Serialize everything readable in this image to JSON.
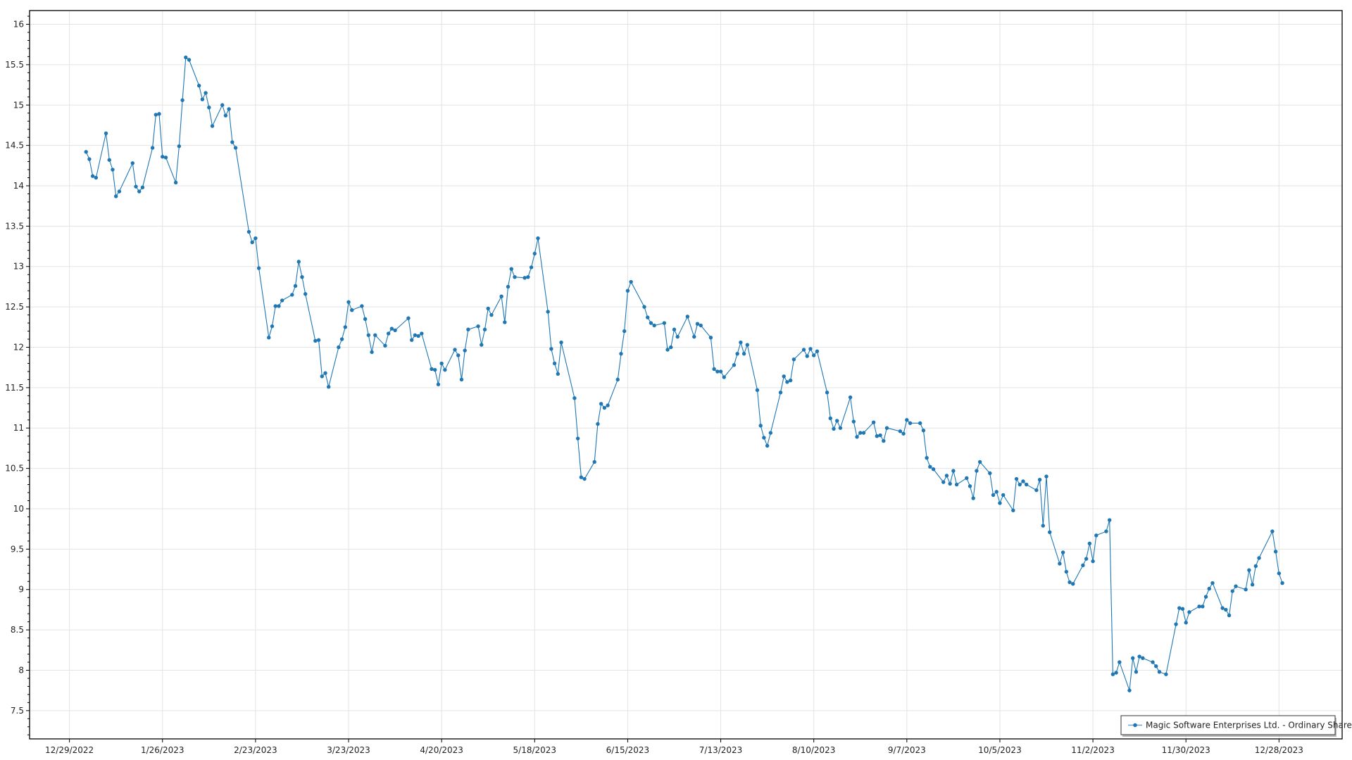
{
  "chart_data": {
    "type": "line",
    "title": "",
    "xlabel": "",
    "ylabel": "",
    "xlim": [
      "2022-12-17",
      "2024-01-16"
    ],
    "ylim": [
      7.15,
      16.17
    ],
    "grid": true,
    "legend_position": "bottom-right",
    "colors": {
      "series": "#1f77b4",
      "grid": "#e3e3e3",
      "axis": "#000000"
    },
    "y_ticks": [
      7.5,
      8,
      8.5,
      9,
      9.5,
      10,
      10.5,
      11,
      11.5,
      12,
      12.5,
      13,
      13.5,
      14,
      14.5,
      15,
      15.5,
      16
    ],
    "y_tick_labels": [
      "7.5",
      "8",
      "8.5",
      "9",
      "9.5",
      "10",
      "10.5",
      "11",
      "11.5",
      "12",
      "12.5",
      "13",
      "13.5",
      "14",
      "14.5",
      "15",
      "15.5",
      "16"
    ],
    "x_ticks": [
      "2022-12-29",
      "2023-01-26",
      "2023-02-23",
      "2023-03-23",
      "2023-04-20",
      "2023-05-18",
      "2023-06-15",
      "2023-07-13",
      "2023-08-10",
      "2023-09-07",
      "2023-10-05",
      "2023-11-02",
      "2023-11-30",
      "2023-12-28"
    ],
    "x_tick_labels": [
      "12/29/2022",
      "1/26/2023",
      "2/23/2023",
      "3/23/2023",
      "4/20/2023",
      "5/18/2023",
      "6/15/2023",
      "7/13/2023",
      "8/10/2023",
      "9/7/2023",
      "10/5/2023",
      "11/2/2023",
      "11/30/2023",
      "12/28/2023"
    ],
    "series": [
      {
        "name": "Magic Software Enterprises Ltd. - Ordinary Shares",
        "marker": "circle",
        "x": [
          "2023-01-03",
          "2023-01-04",
          "2023-01-05",
          "2023-01-06",
          "2023-01-09",
          "2023-01-10",
          "2023-01-11",
          "2023-01-12",
          "2023-01-13",
          "2023-01-17",
          "2023-01-18",
          "2023-01-19",
          "2023-01-20",
          "2023-01-23",
          "2023-01-24",
          "2023-01-25",
          "2023-01-26",
          "2023-01-27",
          "2023-01-30",
          "2023-01-31",
          "2023-02-01",
          "2023-02-02",
          "2023-02-03",
          "2023-02-06",
          "2023-02-07",
          "2023-02-08",
          "2023-02-09",
          "2023-02-10",
          "2023-02-13",
          "2023-02-14",
          "2023-02-15",
          "2023-02-16",
          "2023-02-17",
          "2023-02-21",
          "2023-02-22",
          "2023-02-23",
          "2023-02-24",
          "2023-02-27",
          "2023-02-28",
          "2023-03-01",
          "2023-03-02",
          "2023-03-03",
          "2023-03-06",
          "2023-03-07",
          "2023-03-08",
          "2023-03-09",
          "2023-03-10",
          "2023-03-13",
          "2023-03-14",
          "2023-03-15",
          "2023-03-16",
          "2023-03-17",
          "2023-03-20",
          "2023-03-21",
          "2023-03-22",
          "2023-03-23",
          "2023-03-24",
          "2023-03-27",
          "2023-03-28",
          "2023-03-29",
          "2023-03-30",
          "2023-03-31",
          "2023-04-03",
          "2023-04-04",
          "2023-04-05",
          "2023-04-06",
          "2023-04-10",
          "2023-04-11",
          "2023-04-12",
          "2023-04-13",
          "2023-04-14",
          "2023-04-17",
          "2023-04-18",
          "2023-04-19",
          "2023-04-20",
          "2023-04-21",
          "2023-04-24",
          "2023-04-25",
          "2023-04-26",
          "2023-04-27",
          "2023-04-28",
          "2023-05-01",
          "2023-05-02",
          "2023-05-03",
          "2023-05-04",
          "2023-05-05",
          "2023-05-08",
          "2023-05-09",
          "2023-05-10",
          "2023-05-11",
          "2023-05-12",
          "2023-05-15",
          "2023-05-16",
          "2023-05-17",
          "2023-05-18",
          "2023-05-19",
          "2023-05-22",
          "2023-05-23",
          "2023-05-24",
          "2023-05-25",
          "2023-05-26",
          "2023-05-30",
          "2023-05-31",
          "2023-06-01",
          "2023-06-02",
          "2023-06-05",
          "2023-06-06",
          "2023-06-07",
          "2023-06-08",
          "2023-06-09",
          "2023-06-12",
          "2023-06-13",
          "2023-06-14",
          "2023-06-15",
          "2023-06-16",
          "2023-06-20",
          "2023-06-21",
          "2023-06-22",
          "2023-06-23",
          "2023-06-26",
          "2023-06-27",
          "2023-06-28",
          "2023-06-29",
          "2023-06-30",
          "2023-07-03",
          "2023-07-05",
          "2023-07-06",
          "2023-07-07",
          "2023-07-10",
          "2023-07-11",
          "2023-07-12",
          "2023-07-13",
          "2023-07-14",
          "2023-07-17",
          "2023-07-18",
          "2023-07-19",
          "2023-07-20",
          "2023-07-21",
          "2023-07-24",
          "2023-07-25",
          "2023-07-26",
          "2023-07-27",
          "2023-07-28",
          "2023-07-31",
          "2023-08-01",
          "2023-08-02",
          "2023-08-03",
          "2023-08-04",
          "2023-08-07",
          "2023-08-08",
          "2023-08-09",
          "2023-08-10",
          "2023-08-11",
          "2023-08-14",
          "2023-08-15",
          "2023-08-16",
          "2023-08-17",
          "2023-08-18",
          "2023-08-21",
          "2023-08-22",
          "2023-08-23",
          "2023-08-24",
          "2023-08-25",
          "2023-08-28",
          "2023-08-29",
          "2023-08-30",
          "2023-08-31",
          "2023-09-01",
          "2023-09-05",
          "2023-09-06",
          "2023-09-07",
          "2023-09-08",
          "2023-09-11",
          "2023-09-12",
          "2023-09-13",
          "2023-09-14",
          "2023-09-15",
          "2023-09-18",
          "2023-09-19",
          "2023-09-20",
          "2023-09-21",
          "2023-09-22",
          "2023-09-25",
          "2023-09-26",
          "2023-09-27",
          "2023-09-28",
          "2023-09-29",
          "2023-10-02",
          "2023-10-03",
          "2023-10-04",
          "2023-10-05",
          "2023-10-06",
          "2023-10-09",
          "2023-10-10",
          "2023-10-11",
          "2023-10-12",
          "2023-10-13",
          "2023-10-16",
          "2023-10-17",
          "2023-10-18",
          "2023-10-19",
          "2023-10-20",
          "2023-10-23",
          "2023-10-24",
          "2023-10-25",
          "2023-10-26",
          "2023-10-27",
          "2023-10-30",
          "2023-10-31",
          "2023-11-01",
          "2023-11-02",
          "2023-11-03",
          "2023-11-06",
          "2023-11-07",
          "2023-11-08",
          "2023-11-09",
          "2023-11-10",
          "2023-11-13",
          "2023-11-14",
          "2023-11-15",
          "2023-11-16",
          "2023-11-17",
          "2023-11-20",
          "2023-11-21",
          "2023-11-22",
          "2023-11-24",
          "2023-11-27",
          "2023-11-28",
          "2023-11-29",
          "2023-11-30",
          "2023-12-01",
          "2023-12-04",
          "2023-12-05",
          "2023-12-06",
          "2023-12-07",
          "2023-12-08",
          "2023-12-11",
          "2023-12-12",
          "2023-12-13",
          "2023-12-14",
          "2023-12-15",
          "2023-12-18",
          "2023-12-19",
          "2023-12-20",
          "2023-12-21",
          "2023-12-22",
          "2023-12-26",
          "2023-12-27",
          "2023-12-28",
          "2023-12-29"
        ],
        "y": [
          14.42,
          14.33,
          14.12,
          14.1,
          14.65,
          14.32,
          14.2,
          13.87,
          13.93,
          14.28,
          13.99,
          13.93,
          13.98,
          14.47,
          14.88,
          14.89,
          14.36,
          14.35,
          14.04,
          14.49,
          15.06,
          15.59,
          15.56,
          15.24,
          15.07,
          15.15,
          14.97,
          14.74,
          15.0,
          14.87,
          14.95,
          14.54,
          14.47,
          13.43,
          13.3,
          13.35,
          12.98,
          12.12,
          12.26,
          12.51,
          12.51,
          12.58,
          12.65,
          12.76,
          13.06,
          12.87,
          12.66,
          12.08,
          12.09,
          11.64,
          11.68,
          11.51,
          12.0,
          12.1,
          12.25,
          12.56,
          12.46,
          12.51,
          12.35,
          12.15,
          11.94,
          12.15,
          12.02,
          12.17,
          12.23,
          12.21,
          12.36,
          12.09,
          12.15,
          12.14,
          12.17,
          11.73,
          11.72,
          11.54,
          11.8,
          11.72,
          11.97,
          11.9,
          11.6,
          11.96,
          12.22,
          12.26,
          12.03,
          12.22,
          12.48,
          12.4,
          12.63,
          12.31,
          12.75,
          12.97,
          12.87,
          12.86,
          12.87,
          12.99,
          13.16,
          13.35,
          12.44,
          11.98,
          11.8,
          11.67,
          12.06,
          11.37,
          10.87,
          10.39,
          10.37,
          10.58,
          11.05,
          11.3,
          11.25,
          11.28,
          11.6,
          11.92,
          12.2,
          12.7,
          12.81,
          12.5,
          12.37,
          12.3,
          12.27,
          12.3,
          11.97,
          12.0,
          12.22,
          12.13,
          12.38,
          12.13,
          12.29,
          12.27,
          12.12,
          11.73,
          11.7,
          11.7,
          11.63,
          11.78,
          11.92,
          12.06,
          11.92,
          12.03,
          11.47,
          11.03,
          10.88,
          10.78,
          10.94,
          11.44,
          11.64,
          11.57,
          11.59,
          11.85,
          11.97,
          11.89,
          11.98,
          11.9,
          11.95,
          11.44,
          11.12,
          10.99,
          11.09,
          11.0,
          11.38,
          11.08,
          10.89,
          10.94,
          10.94,
          11.07,
          10.9,
          10.91,
          10.84,
          11.0,
          10.96,
          10.93,
          11.1,
          11.06,
          11.06,
          10.97,
          10.63,
          10.52,
          10.49,
          10.33,
          10.41,
          10.31,
          10.47,
          10.3,
          10.38,
          10.28,
          10.13,
          10.47,
          10.58,
          10.44,
          10.17,
          10.21,
          10.07,
          10.17,
          9.98,
          10.37,
          10.3,
          10.34,
          10.3,
          10.23,
          10.36,
          9.79,
          10.4,
          9.71,
          9.32,
          9.46,
          9.22,
          9.09,
          9.07,
          9.3,
          9.38,
          9.57,
          9.35,
          9.67,
          9.72,
          9.86,
          7.95,
          7.97,
          8.1,
          7.75,
          8.15,
          7.98,
          8.17,
          8.15,
          8.1,
          8.05,
          7.98,
          7.95,
          8.57,
          8.77,
          8.76,
          8.59,
          8.72,
          8.79,
          8.79,
          8.91,
          9.01,
          9.08,
          8.77,
          8.75,
          8.68,
          8.98,
          9.04,
          9.0,
          9.24,
          9.06,
          9.29,
          9.39,
          9.72,
          9.47,
          9.2,
          9.08
        ]
      }
    ]
  }
}
